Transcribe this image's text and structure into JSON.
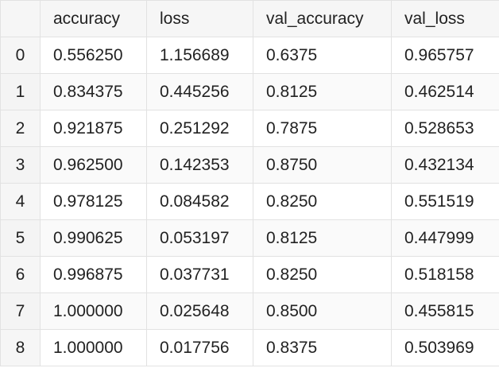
{
  "table": {
    "columns": [
      "accuracy",
      "loss",
      "val_accuracy",
      "val_loss"
    ],
    "rows": [
      {
        "index": "0",
        "accuracy": "0.556250",
        "loss": "1.156689",
        "val_accuracy": "0.6375",
        "val_loss": "0.965757"
      },
      {
        "index": "1",
        "accuracy": "0.834375",
        "loss": "0.445256",
        "val_accuracy": "0.8125",
        "val_loss": "0.462514"
      },
      {
        "index": "2",
        "accuracy": "0.921875",
        "loss": "0.251292",
        "val_accuracy": "0.7875",
        "val_loss": "0.528653"
      },
      {
        "index": "3",
        "accuracy": "0.962500",
        "loss": "0.142353",
        "val_accuracy": "0.8750",
        "val_loss": "0.432134"
      },
      {
        "index": "4",
        "accuracy": "0.978125",
        "loss": "0.084582",
        "val_accuracy": "0.8250",
        "val_loss": "0.551519"
      },
      {
        "index": "5",
        "accuracy": "0.990625",
        "loss": "0.053197",
        "val_accuracy": "0.8125",
        "val_loss": "0.447999"
      },
      {
        "index": "6",
        "accuracy": "0.996875",
        "loss": "0.037731",
        "val_accuracy": "0.8250",
        "val_loss": "0.518158"
      },
      {
        "index": "7",
        "accuracy": "1.000000",
        "loss": "0.025648",
        "val_accuracy": "0.8500",
        "val_loss": "0.455815"
      },
      {
        "index": "8",
        "accuracy": "1.000000",
        "loss": "0.017756",
        "val_accuracy": "0.8375",
        "val_loss": "0.503969"
      }
    ]
  },
  "chart_data": {
    "type": "table",
    "columns": [
      "accuracy",
      "loss",
      "val_accuracy",
      "val_loss"
    ],
    "index": [
      0,
      1,
      2,
      3,
      4,
      5,
      6,
      7,
      8
    ],
    "accuracy": [
      0.55625,
      0.834375,
      0.921875,
      0.9625,
      0.978125,
      0.990625,
      0.996875,
      1.0,
      1.0
    ],
    "loss": [
      1.156689,
      0.445256,
      0.251292,
      0.142353,
      0.084582,
      0.053197,
      0.037731,
      0.025648,
      0.017756
    ],
    "val_accuracy": [
      0.6375,
      0.8125,
      0.7875,
      0.875,
      0.825,
      0.8125,
      0.825,
      0.85,
      0.8375
    ],
    "val_loss": [
      0.965757,
      0.462514,
      0.528653,
      0.432134,
      0.551519,
      0.447999,
      0.518158,
      0.455815,
      0.503969
    ]
  }
}
